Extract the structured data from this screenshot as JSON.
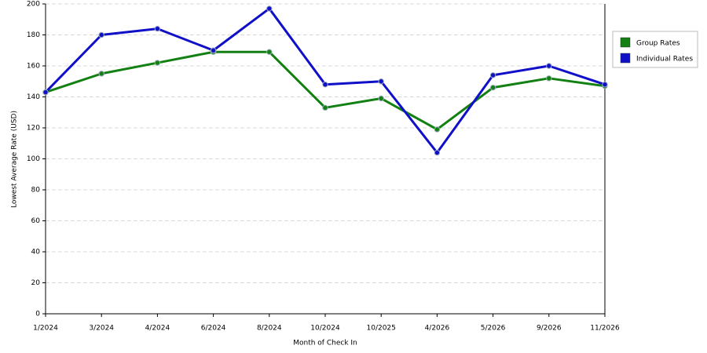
{
  "chart_data": {
    "type": "line",
    "x_label": "Month of Check In",
    "y_label": "Lowest Average Rate (USD)",
    "categories": [
      "1/2024",
      "3/2024",
      "4/2024",
      "6/2024",
      "8/2024",
      "10/2024",
      "10/2025",
      "4/2026",
      "5/2026",
      "9/2026",
      "11/2026"
    ],
    "series": [
      {
        "name": "Group Rates",
        "color": "#138013",
        "values": [
          143,
          155,
          162,
          169,
          169,
          133,
          139,
          119,
          146,
          152,
          147
        ]
      },
      {
        "name": "Individual Rates",
        "color": "#1010c8",
        "values": [
          143,
          180,
          184,
          170,
          197,
          148,
          150,
          104,
          154,
          160,
          148
        ]
      }
    ],
    "ylim": [
      0,
      200
    ],
    "yticks": [
      0,
      20,
      40,
      60,
      80,
      100,
      120,
      140,
      160,
      180,
      200
    ],
    "grid": true,
    "legend": "right"
  }
}
